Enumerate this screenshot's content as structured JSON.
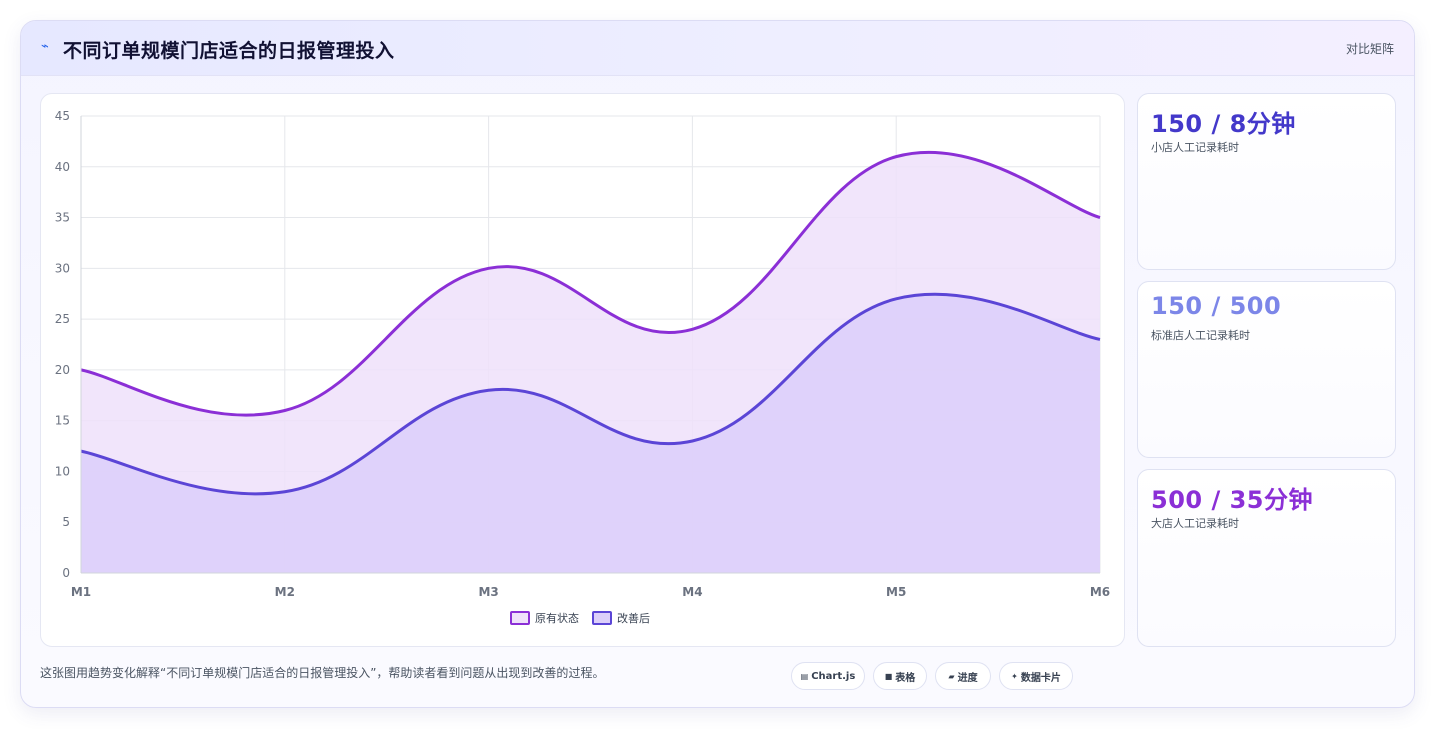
{
  "header": {
    "icon": "trend-icon",
    "title": "不同订单规模门店适合的日报管理投入",
    "mode_label": "对比矩阵"
  },
  "chart_data": {
    "type": "area",
    "categories": [
      "M1",
      "M2",
      "M3",
      "M4",
      "M5",
      "M6"
    ],
    "series": [
      {
        "name": "原有状态",
        "values": [
          20,
          16,
          30,
          24,
          41,
          35
        ],
        "color": "#8b2fd6",
        "fill": "#efe1fa"
      },
      {
        "name": "改善后",
        "values": [
          12,
          8,
          18,
          13,
          27,
          23
        ],
        "color": "#5b45d6",
        "fill": "#dccffa"
      }
    ],
    "ylim": [
      0,
      45
    ],
    "yticks": [
      0,
      5,
      10,
      15,
      20,
      25,
      30,
      35,
      40,
      45
    ],
    "grid": true,
    "legend": "bottom",
    "smooth": true
  },
  "stats": [
    {
      "value": "150 / 8分钟",
      "label": "小店人工记录耗时",
      "color": "#4338ca"
    },
    {
      "value": "150 / 500",
      "label": "标准店人工记录耗时",
      "color": "#7c86e8"
    },
    {
      "value": "500 / 35分钟",
      "label": "大店人工记录耗时",
      "color": "#8b2fd6"
    }
  ],
  "footer": {
    "caption": "这张图用趋势变化解释“不同订单规模门店适合的日报管理投入”，帮助读者看到问题从出现到改善的过程。",
    "chips": [
      {
        "icon": "chart-icon",
        "label": "Chart.js"
      },
      {
        "icon": "table-icon",
        "label": "表格"
      },
      {
        "icon": "progress-icon",
        "label": "进度"
      },
      {
        "icon": "sparkle-icon",
        "label": "数据卡片"
      }
    ]
  }
}
